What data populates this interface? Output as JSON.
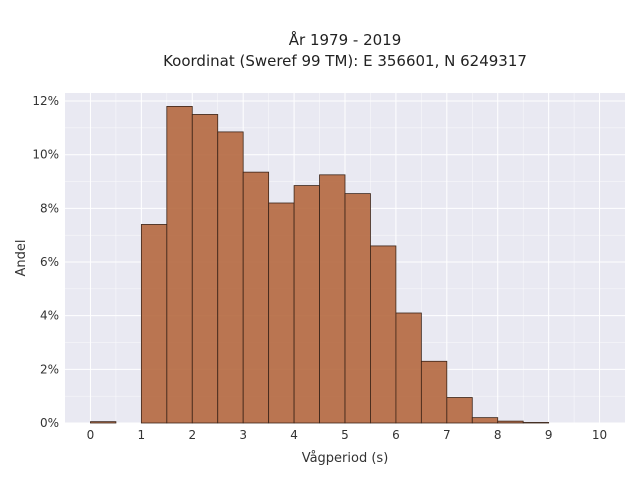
{
  "chart_data": {
    "type": "bar",
    "title": "År 1979 - 2019",
    "subtitle": "Koordinat (Sweref 99 TM): E 356601, N 6249317",
    "xlabel": "Vågperiod (s)",
    "ylabel": "Andel",
    "xlim": [
      -0.5,
      10.5
    ],
    "ylim": [
      0,
      12.3
    ],
    "xticks": [
      0,
      1,
      2,
      3,
      4,
      5,
      6,
      7,
      8,
      9,
      10
    ],
    "xtick_labels": [
      "0",
      "1",
      "2",
      "3",
      "4",
      "5",
      "6",
      "7",
      "8",
      "9",
      "10"
    ],
    "yticks": [
      0,
      2,
      4,
      6,
      8,
      10,
      12
    ],
    "ytick_labels": [
      "0%",
      "2%",
      "4%",
      "6%",
      "8%",
      "10%",
      "12%"
    ],
    "bin_width": 0.5,
    "bins": [
      {
        "x0": 0.0,
        "value": 0.05
      },
      {
        "x0": 0.5,
        "value": 0.0
      },
      {
        "x0": 1.0,
        "value": 7.4
      },
      {
        "x0": 1.5,
        "value": 11.8
      },
      {
        "x0": 2.0,
        "value": 11.5
      },
      {
        "x0": 2.5,
        "value": 10.85
      },
      {
        "x0": 3.0,
        "value": 9.35
      },
      {
        "x0": 3.5,
        "value": 8.2
      },
      {
        "x0": 4.0,
        "value": 8.85
      },
      {
        "x0": 4.5,
        "value": 9.25
      },
      {
        "x0": 5.0,
        "value": 8.55
      },
      {
        "x0": 5.5,
        "value": 6.6
      },
      {
        "x0": 6.0,
        "value": 4.1
      },
      {
        "x0": 6.5,
        "value": 2.3
      },
      {
        "x0": 7.0,
        "value": 0.95
      },
      {
        "x0": 7.5,
        "value": 0.2
      },
      {
        "x0": 8.0,
        "value": 0.07
      },
      {
        "x0": 8.5,
        "value": 0.02
      }
    ],
    "bar_color": "#b5683f",
    "bar_edge_color": "#3b2418",
    "background_color": "#e9e9f2",
    "grid_color": "#ffffff",
    "grid": true,
    "legend": "none"
  }
}
